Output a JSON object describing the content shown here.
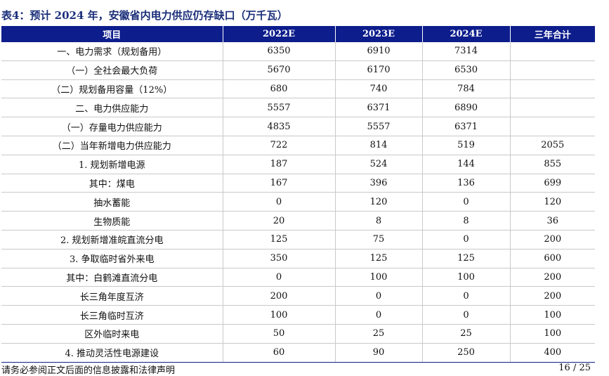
{
  "title": "表4：预计 2024 年，安徽省内电力供应仍存缺口（万千瓦）",
  "table": {
    "headers": [
      "项目",
      "2022E",
      "2023E",
      "2024E",
      "三年合计"
    ],
    "rows": [
      [
        "一、电力需求（规划备用）",
        "6350",
        "6910",
        "7314",
        ""
      ],
      [
        "（一）全社会最大负荷",
        "5670",
        "6170",
        "6530",
        ""
      ],
      [
        "（二）规划备用容量（12%）",
        "680",
        "740",
        "784",
        ""
      ],
      [
        "二、电力供应能力",
        "5557",
        "6371",
        "6890",
        ""
      ],
      [
        "（一）存量电力供应能力",
        "4835",
        "5557",
        "6371",
        ""
      ],
      [
        "（二）当年新增电力供应能力",
        "722",
        "814",
        "519",
        "2055"
      ],
      [
        "1. 规划新增电源",
        "187",
        "524",
        "144",
        "855"
      ],
      [
        "其中：煤电",
        "167",
        "396",
        "136",
        "699"
      ],
      [
        "抽水蓄能",
        "0",
        "120",
        "0",
        "120"
      ],
      [
        "生物质能",
        "20",
        "8",
        "8",
        "36"
      ],
      [
        "2. 规划新增准皖直流分电",
        "125",
        "75",
        "0",
        "200"
      ],
      [
        "3. 争取临时省外来电",
        "350",
        "125",
        "125",
        "600"
      ],
      [
        "其中：白鹤滩直流分电",
        "0",
        "100",
        "100",
        "200"
      ],
      [
        "长三角年度互济",
        "200",
        "0",
        "0",
        "200"
      ],
      [
        "长三角临时互济",
        "100",
        "0",
        "0",
        "100"
      ],
      [
        "区外临时来电",
        "50",
        "25",
        "25",
        "100"
      ],
      [
        "4. 推动灵活性电源建设",
        "60",
        "90",
        "250",
        "400"
      ]
    ]
  },
  "footer": {
    "disclaimer": "请务必参阅正文后面的信息披露和法律声明",
    "page": "16 / 25"
  },
  "colors": {
    "header_bg": "#0d1d8c",
    "title": "#1b2f7a"
  }
}
